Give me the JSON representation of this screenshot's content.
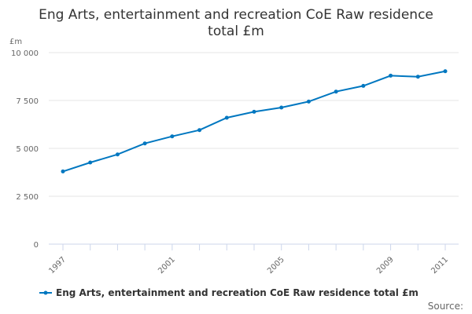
{
  "chart_data": {
    "type": "line",
    "title": "Eng Arts, entertainment and recreation CoE Raw residence total £m",
    "title_lines": [
      "Eng Arts, entertainment and recreation CoE Raw residence",
      "total £m"
    ],
    "ylabel": "£m",
    "xlabel": "",
    "x": [
      1997,
      1998,
      1999,
      2000,
      2001,
      2002,
      2003,
      2004,
      2005,
      2006,
      2007,
      2008,
      2009,
      2010,
      2011
    ],
    "x_tick_labels": [
      "1997",
      "2001",
      "2005",
      "2009",
      "2011"
    ],
    "y_tick_labels": [
      "0",
      "2 500",
      "5 000",
      "7 500",
      "10 000"
    ],
    "y_ticks": [
      0,
      2500,
      5000,
      7500,
      10000
    ],
    "ylim": [
      0,
      10000
    ],
    "grid": "horizontal",
    "legend_position": "bottom",
    "series": [
      {
        "name": "Eng Arts, entertainment and recreation CoE Raw residence total £m",
        "color": "#0077c0",
        "values": [
          3795,
          4262,
          4684,
          5258,
          5627,
          5955,
          6598,
          6910,
          7131,
          7443,
          7963,
          8262,
          8795,
          8742,
          9028
        ]
      }
    ],
    "source_label": "Source:"
  }
}
